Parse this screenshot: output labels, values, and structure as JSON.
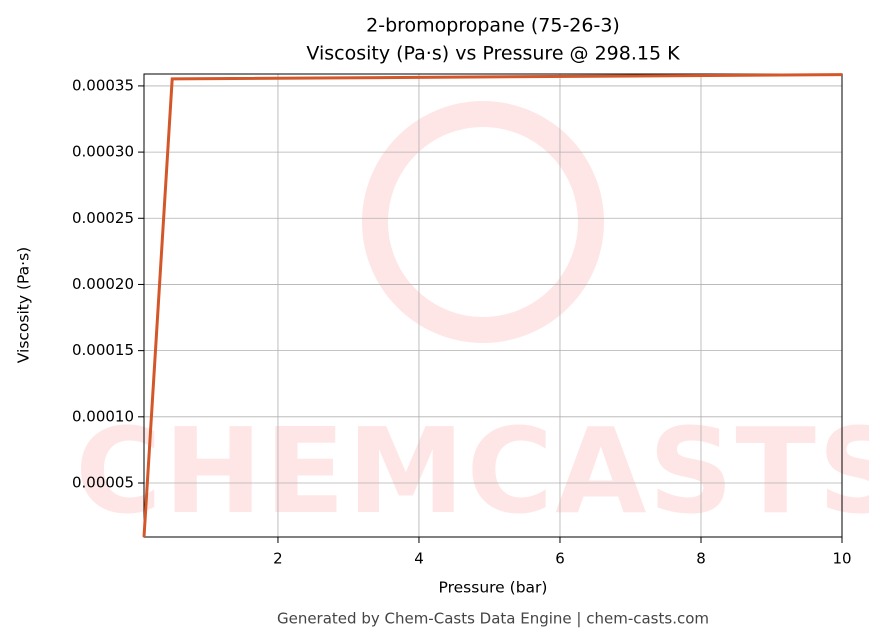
{
  "chart_data": {
    "type": "line",
    "title": "2-bromopropane (75-26-3)",
    "subtitle": "Viscosity (Pa·s) vs Pressure @ 298.15 K",
    "x_label": "Pressure (bar)",
    "y_label": "Viscosity (Pa·s)",
    "watermark": "CHEMCASTS",
    "footer": "Generated by Chem-Casts Data Engine | chem-casts.com",
    "x": [
      0.1,
      0.5,
      10
    ],
    "series": [
      {
        "name": "Viscosity",
        "color": "#d4572a",
        "values": [
          9.2e-06,
          0.0003553,
          0.0003585
        ]
      }
    ],
    "xlim": [
      0.1,
      10
    ],
    "ylim": [
      9.2e-06,
      0.000359
    ],
    "xticks": [
      2,
      4,
      6,
      8,
      10
    ],
    "yticks": [
      {
        "value": 5e-05,
        "label": "0.00005"
      },
      {
        "value": 0.0001,
        "label": "0.00010"
      },
      {
        "value": 0.00015,
        "label": "0.00015"
      },
      {
        "value": 0.0002,
        "label": "0.00020"
      },
      {
        "value": 0.00025,
        "label": "0.00025"
      },
      {
        "value": 0.0003,
        "label": "0.00030"
      },
      {
        "value": 0.00035,
        "label": "0.00035"
      }
    ],
    "grid": true
  }
}
